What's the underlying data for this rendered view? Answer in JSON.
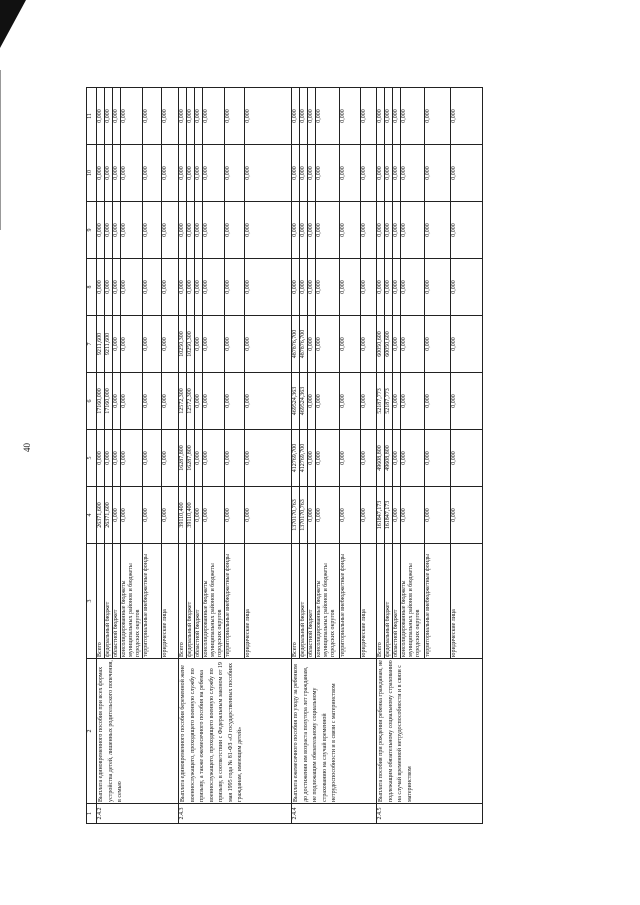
{
  "page_number": "40",
  "table": {
    "headers": [
      "1",
      "2",
      "3",
      "4",
      "5",
      "6",
      "7",
      "8",
      "9",
      "10",
      "11"
    ],
    "sections": [
      {
        "number": "2.4.2",
        "description": "Выплата единовременного пособия при всех формах устройства детей, лишенных родительского попечения, в семью",
        "rows": [
          {
            "label": "Всего",
            "values": [
              "26371,600",
              "0,000",
              "17160,000",
              "9211,600",
              "0,000",
              "0,000",
              "0,000",
              "0,000"
            ]
          },
          {
            "label": "федеральный бюджет",
            "values": [
              "26371,600",
              "0,000",
              "17160,000",
              "9211,600",
              "0,000",
              "0,000",
              "0,000",
              "0,000"
            ]
          },
          {
            "label": "областной бюджет",
            "values": [
              "0,000",
              "0,000",
              "0,000",
              "0,000",
              "0,000",
              "0,000",
              "0,000",
              "0,000"
            ]
          },
          {
            "label": "консолидированные бюджеты муниципальных районов и бюджеты городских округов",
            "values": [
              "0,000",
              "0,000",
              "0,000",
              "0,000",
              "0,000",
              "0,000",
              "0,000",
              "0,000"
            ]
          },
          {
            "label": "территориальные внебюджетные фонды",
            "values": [
              "0,000",
              "0,000",
              "0,000",
              "0,000",
              "0,000",
              "0,000",
              "0,000",
              "0,000"
            ]
          },
          {
            "label": "юридические лица",
            "values": [
              "0,000",
              "0,000",
              "0,000",
              "0,000",
              "0,000",
              "0,000",
              "0,000",
              "0,000"
            ]
          }
        ]
      },
      {
        "number": "2.4.3",
        "description": "Выплата единовременного пособия беременной жене военнослужащего, проходящего военную службу по призыву, а также ежемесячного пособия на ребенка военнослужащего, проходящего военную службу по призыву, в соответствии с Федеральным законом от 19 мая 1995 года № 81-ФЗ «О государственных пособиях гражданам, имеющим детей»",
        "rows": [
          {
            "label": "Всего",
            "values": [
              "39110,400",
              "16287,800",
              "12572,300",
              "10250,300",
              "0,000",
              "0,000",
              "0,000",
              "0,000"
            ]
          },
          {
            "label": "федеральный бюджет",
            "values": [
              "39110,400",
              "16287,800",
              "12572,300",
              "10250,300",
              "0,000",
              "0,000",
              "0,000",
              "0,000"
            ]
          },
          {
            "label": "областной бюджет",
            "values": [
              "0,000",
              "0,000",
              "0,000",
              "0,000",
              "0,000",
              "0,000",
              "0,000",
              "0,000"
            ]
          },
          {
            "label": "консолидированные бюджеты муниципальных районов и бюджеты городских округов",
            "values": [
              "0,000",
              "0,000",
              "0,000",
              "0,000",
              "0,000",
              "0,000",
              "0,000",
              "0,000"
            ]
          },
          {
            "label": "территориальные внебюджетные фонды",
            "values": [
              "0,000",
              "0,000",
              "0,000",
              "0,000",
              "0,000",
              "0,000",
              "0,000",
              "0,000"
            ]
          },
          {
            "label": "юридические лица",
            "values": [
              "0,000",
              "0,000",
              "0,000",
              "0,000",
              "0,000",
              "0,000",
              "0,000",
              "0,000"
            ]
          }
        ]
      },
      {
        "number": "2.4.4",
        "description": "Выплата ежемесячного пособия по уходу за ребенком до достижения им возраста полутора лет гражданам, не подлежащим обязательному социальному страхованию на случай временной нетрудоспособности и в связи с материнством",
        "rows": [
          {
            "label": "Всего",
            "values": [
              "1370170,763",
              "412769,700",
              "469524,363",
              "487876,700",
              "0,000",
              "0,000",
              "0,000",
              "0,000"
            ]
          },
          {
            "label": "федеральный бюджет",
            "values": [
              "1370170,763",
              "412769,700",
              "469524,363",
              "487876,700",
              "0,000",
              "0,000",
              "0,000",
              "0,000"
            ]
          },
          {
            "label": "областной бюджет",
            "values": [
              "0,000",
              "0,000",
              "0,000",
              "0,000",
              "0,000",
              "0,000",
              "0,000",
              "0,000"
            ]
          },
          {
            "label": "консолидированные бюджеты муниципальных районов и бюджеты городских округов",
            "values": [
              "0,000",
              "0,000",
              "0,000",
              "0,000",
              "0,000",
              "0,000",
              "0,000",
              "0,000"
            ]
          },
          {
            "label": "территориальные внебюджетные фонды",
            "values": [
              "0,000",
              "0,000",
              "0,000",
              "0,000",
              "0,000",
              "0,000",
              "0,000",
              "0,000"
            ]
          },
          {
            "label": "юридические лица",
            "values": [
              "0,000",
              "0,000",
              "0,000",
              "0,000",
              "0,000",
              "0,000",
              "0,000",
              "0,000"
            ]
          }
        ]
      },
      {
        "number": "2.4.5",
        "description": "Выплата пособия при рождении ребенка гражданам, не подлежащим обязательному социальному страхованию на случай временной нетрудоспособности и в связи с материнством",
        "rows": [
          {
            "label": "Всего",
            "values": [
              "161847,173",
              "49608,800",
              "52187,773",
              "60050,600",
              "0,000",
              "0,000",
              "0,000",
              "0,000"
            ]
          },
          {
            "label": "федеральный бюджет",
            "values": [
              "161847,173",
              "49608,800",
              "52187,773",
              "60050,600",
              "0,000",
              "0,000",
              "0,000",
              "0,000"
            ]
          },
          {
            "label": "областной бюджет",
            "values": [
              "0,000",
              "0,000",
              "0,000",
              "0,000",
              "0,000",
              "0,000",
              "0,000",
              "0,000"
            ]
          },
          {
            "label": "консолидированные бюджеты муниципальных районов и бюджеты городских округов",
            "values": [
              "0,000",
              "0,000",
              "0,000",
              "0,000",
              "0,000",
              "0,000",
              "0,000",
              "0,000"
            ]
          },
          {
            "label": "территориальные внебюджетные фонды",
            "values": [
              "0,000",
              "0,000",
              "0,000",
              "0,000",
              "0,000",
              "0,000",
              "0,000",
              "0,000"
            ]
          },
          {
            "label": "юридические лица",
            "values": [
              "0,000",
              "0,000",
              "0,000",
              "0,000",
              "0,000",
              "0,000",
              "0,000",
              "0,000"
            ]
          }
        ]
      }
    ]
  }
}
